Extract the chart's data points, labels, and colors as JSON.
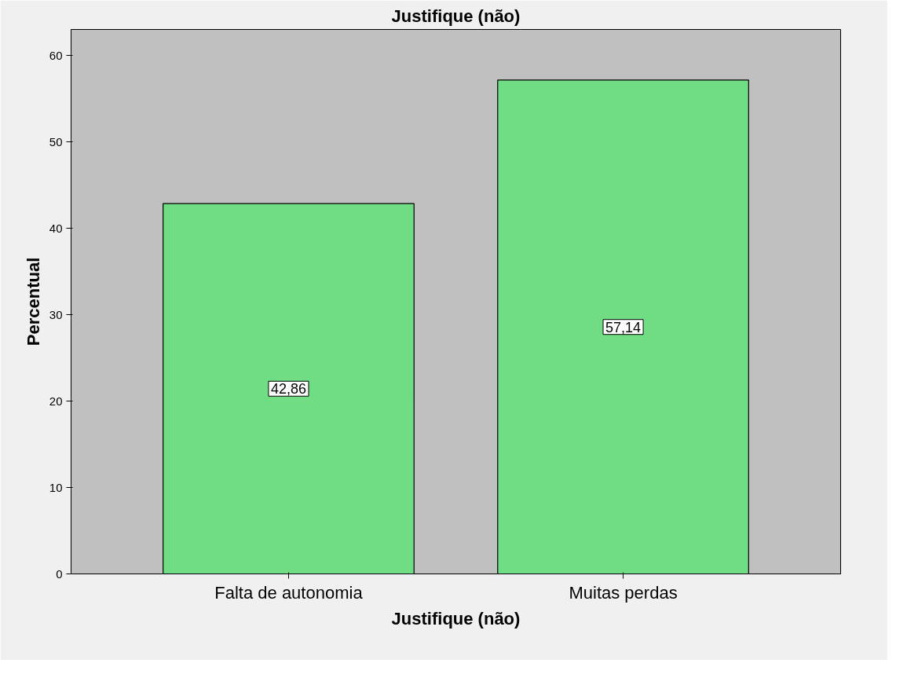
{
  "chart_data": {
    "type": "bar",
    "title": "Justifique (não)",
    "xlabel": "Justifique (não)",
    "ylabel": "Percentual",
    "categories": [
      "Falta de autonomia",
      "Muitas perdas"
    ],
    "values": [
      42.86,
      57.14
    ],
    "value_labels": [
      "42,86",
      "57,14"
    ],
    "color": "#70dc84",
    "ylim": [
      0,
      63
    ],
    "yticks": [
      0,
      10,
      20,
      30,
      40,
      50,
      60
    ],
    "grid": false
  }
}
